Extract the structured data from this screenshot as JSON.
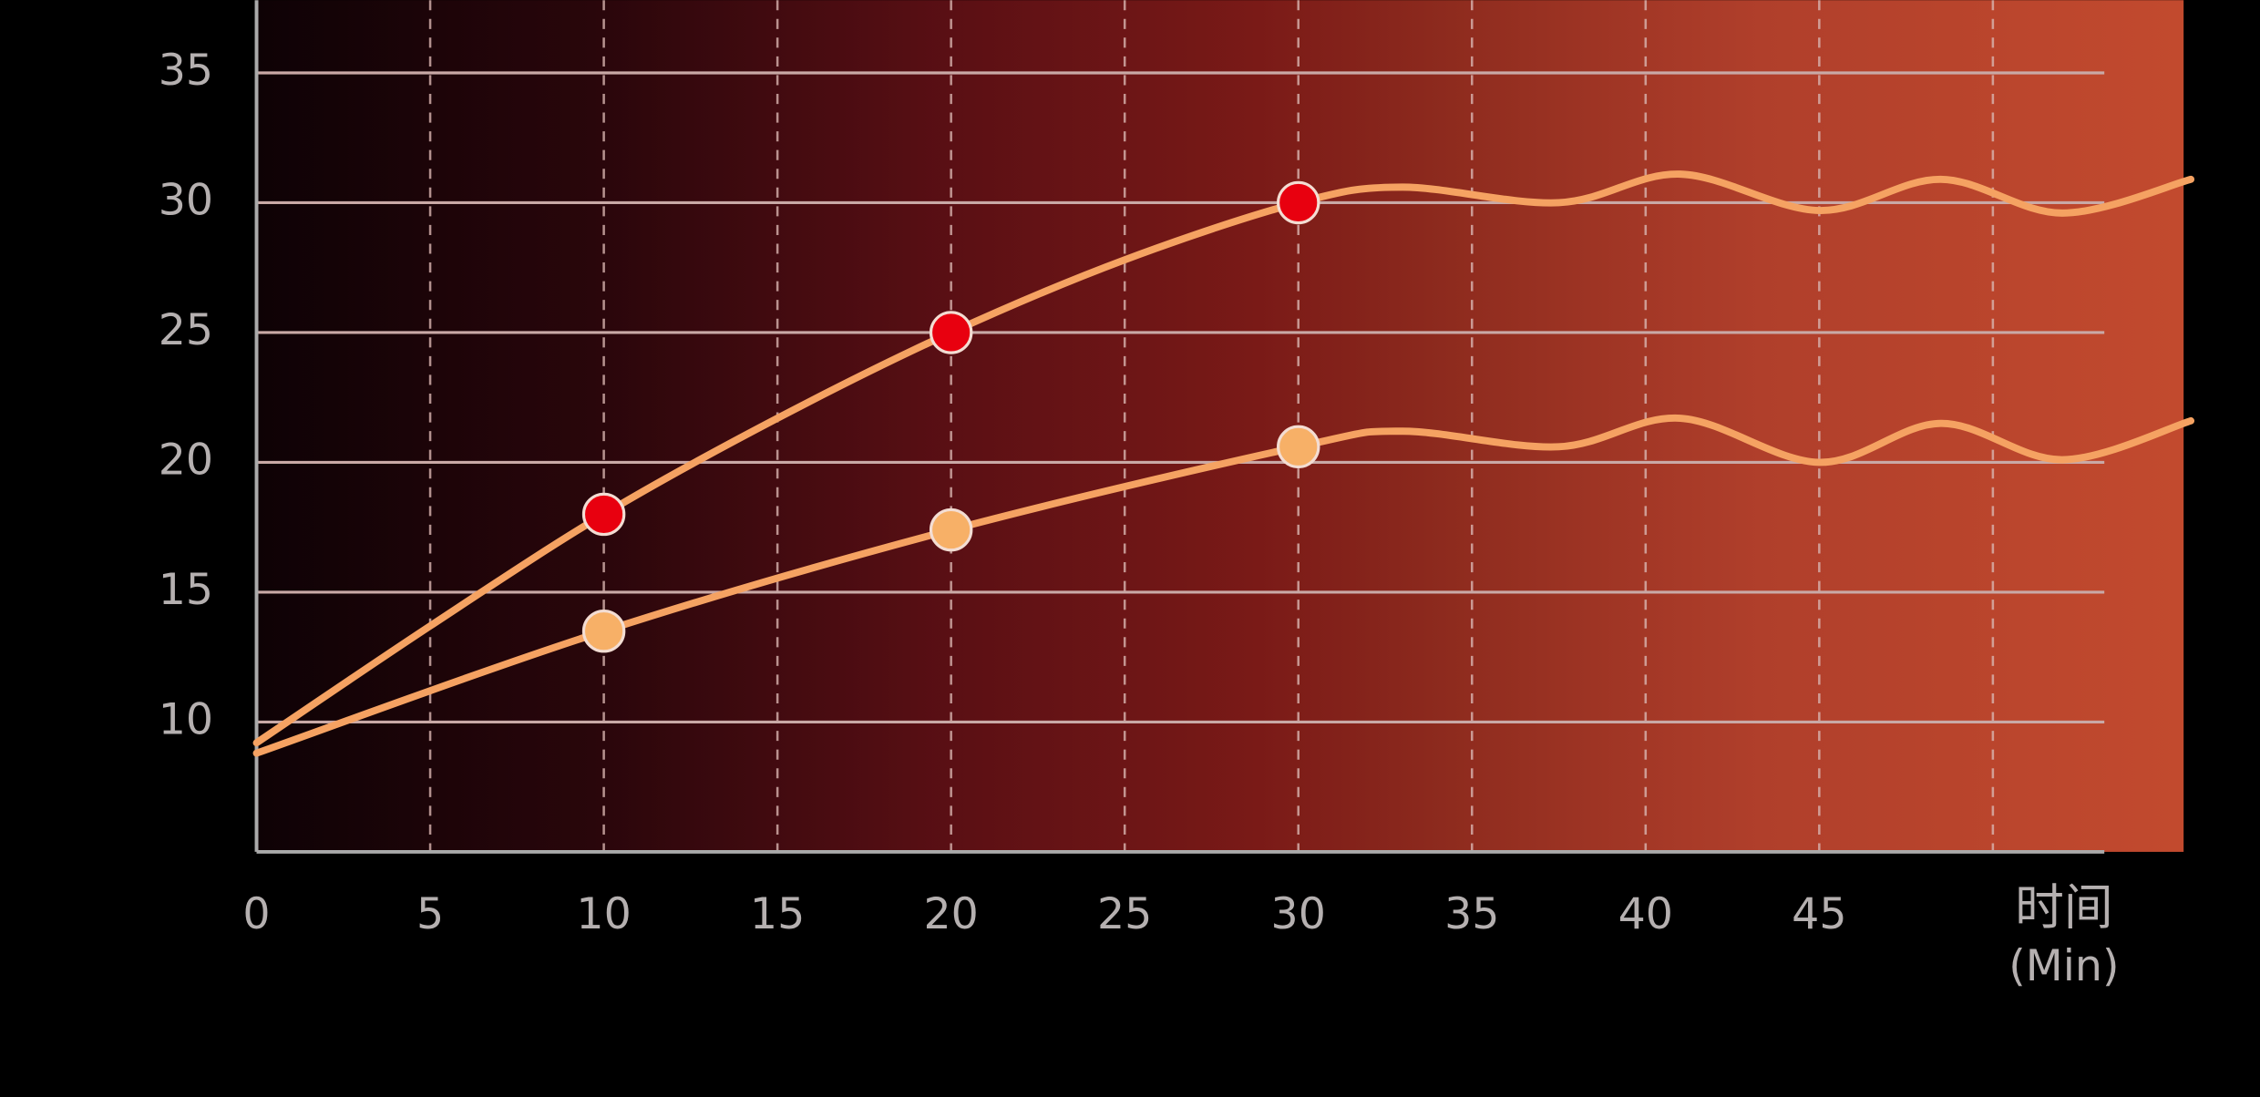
{
  "chart_data": {
    "type": "line",
    "x_label": "时间",
    "x_unit": "(Min)",
    "xlim": [
      0,
      55.7
    ],
    "ylim": [
      5,
      37.8
    ],
    "xticks": [
      0,
      5,
      10,
      15,
      20,
      25,
      30,
      35,
      40,
      45
    ],
    "xgrid": [
      5,
      10,
      15,
      20,
      25,
      30,
      35,
      40,
      45,
      50
    ],
    "yticks": [
      10,
      15,
      20,
      25,
      30,
      35
    ],
    "grid": true,
    "series": [
      {
        "color": "#f5a262",
        "marker_color": "#e8000f",
        "x": [
          0,
          5,
          10,
          15,
          20,
          25,
          30,
          33,
          37.5,
          41,
          45,
          48.5,
          52,
          55.7
        ],
        "values": [
          9.2,
          13.7,
          18.0,
          21.7,
          25.0,
          27.8,
          30.0,
          30.6,
          30.0,
          31.1,
          29.7,
          30.9,
          29.6,
          30.9
        ],
        "marker_x": [
          10,
          20,
          30
        ],
        "marker_values": [
          18.0,
          25.0,
          30.0
        ]
      },
      {
        "color": "#f5a262",
        "marker_color": "#f7b067",
        "x": [
          0,
          10,
          20,
          30,
          33,
          37.5,
          41,
          45,
          48.5,
          52,
          55.7
        ],
        "values": [
          8.8,
          13.5,
          17.4,
          20.6,
          21.2,
          20.6,
          21.7,
          20.0,
          21.5,
          20.1,
          21.6
        ],
        "marker_x": [
          10,
          20,
          30
        ],
        "marker_values": [
          13.5,
          17.4,
          20.6
        ]
      }
    ]
  }
}
